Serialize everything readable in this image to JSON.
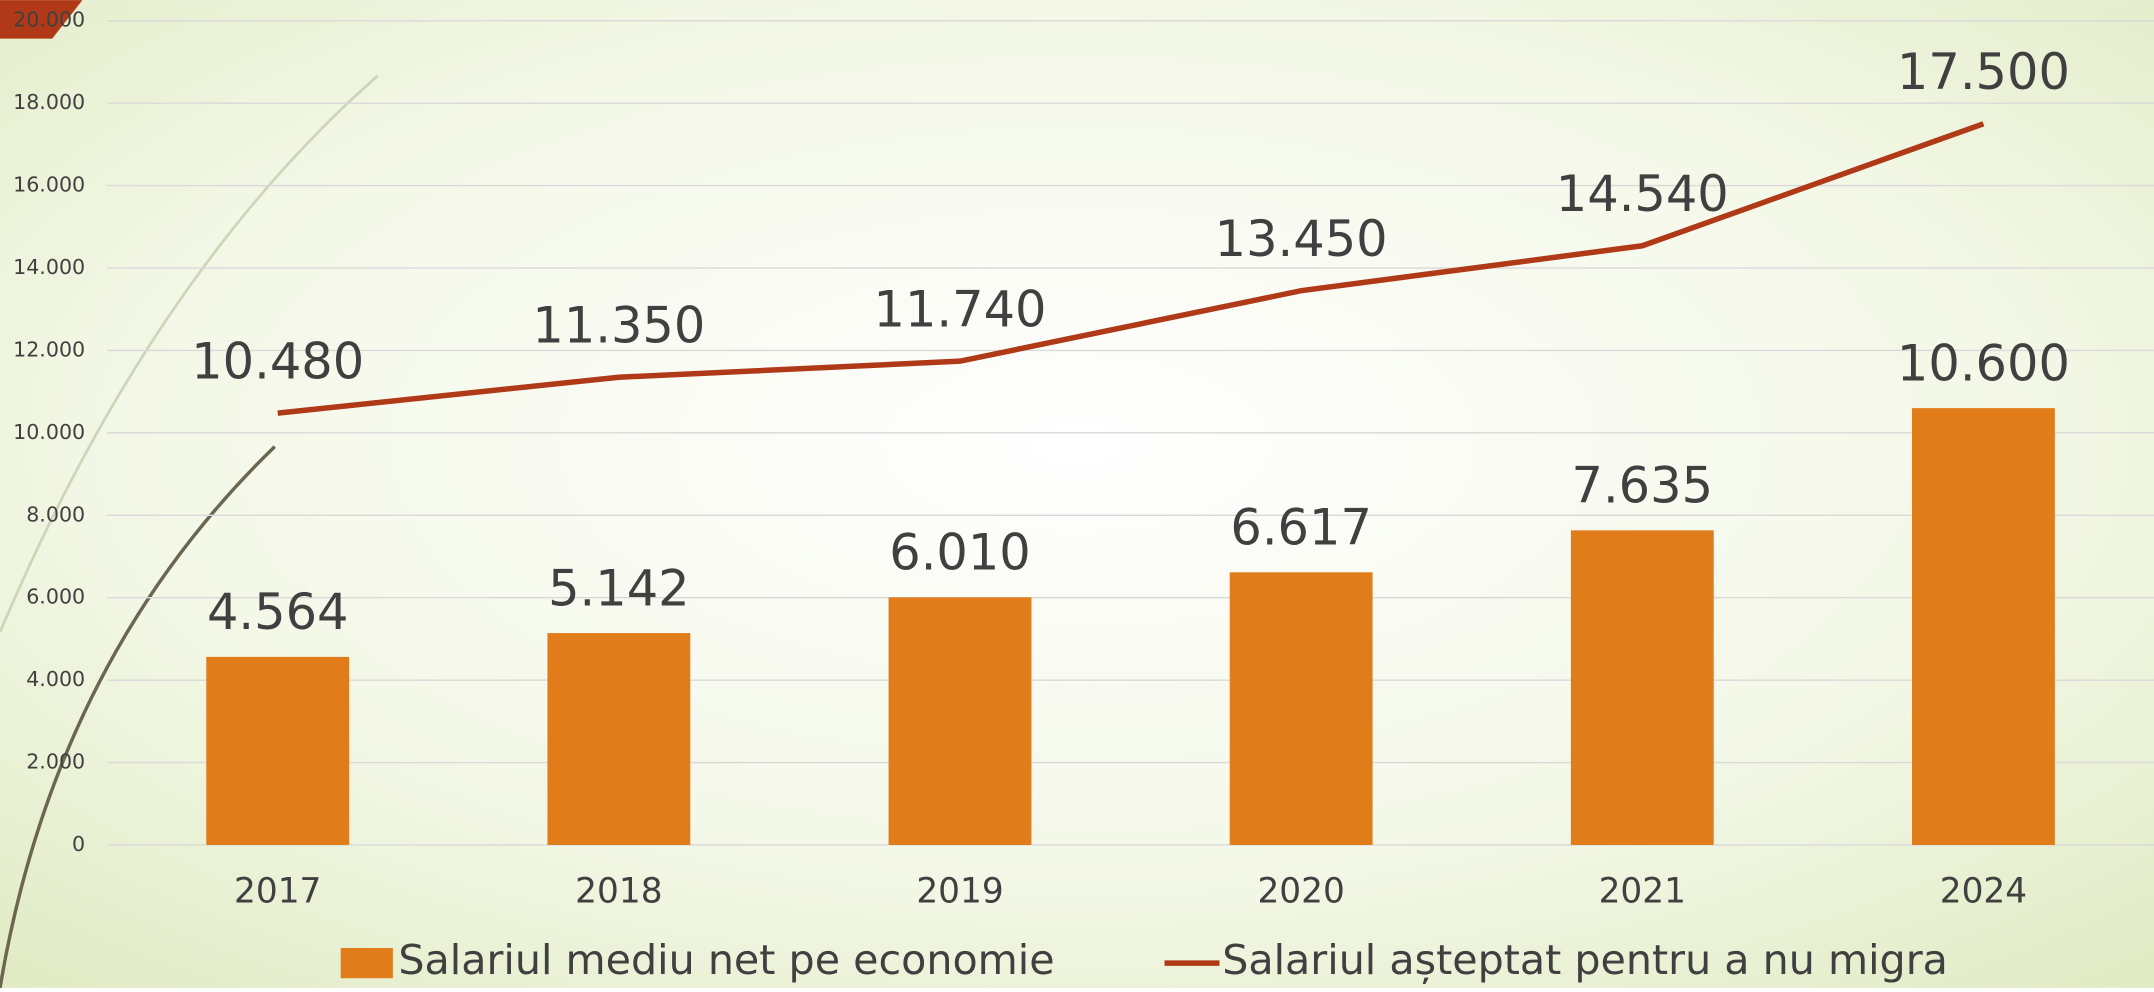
{
  "chart_data": {
    "type": "bar",
    "categories": [
      "2017",
      "2018",
      "2019",
      "2020",
      "2021",
      "2024"
    ],
    "series": [
      {
        "name": "Salariul mediu net pe economie",
        "type": "bar",
        "color": "#e07d1a",
        "values": [
          4564,
          5142,
          6010,
          6617,
          7635,
          10600
        ],
        "value_labels": [
          "4.564",
          "5.142",
          "6.010",
          "6.617",
          "7.635",
          "10.600"
        ]
      },
      {
        "name": "Salariul așteptat pentru a nu migra",
        "type": "line",
        "color": "#b03a17",
        "values": [
          10480,
          11350,
          11740,
          13450,
          14540,
          17500
        ],
        "value_labels": [
          "10.480",
          "11.350",
          "11.740",
          "13.450",
          "14.540",
          "17.500"
        ]
      }
    ],
    "ylim": [
      0,
      20000
    ],
    "yticks": [
      0,
      {
        "value": 2000,
        "label": "2.000"
      },
      {
        "value": 4000,
        "label": "4.000"
      },
      {
        "value": 6000,
        "label": "6.000"
      },
      {
        "value": 8000,
        "label": "8.000"
      },
      {
        "value": 10000,
        "label": "10.000"
      },
      {
        "value": 12000,
        "label": "12.000"
      },
      {
        "value": 14000,
        "label": "14.000"
      },
      {
        "value": 16000,
        "label": "16.000"
      },
      {
        "value": 18000,
        "label": "18.000"
      },
      {
        "value": 20000,
        "label": "20.000"
      }
    ],
    "grid": true
  }
}
